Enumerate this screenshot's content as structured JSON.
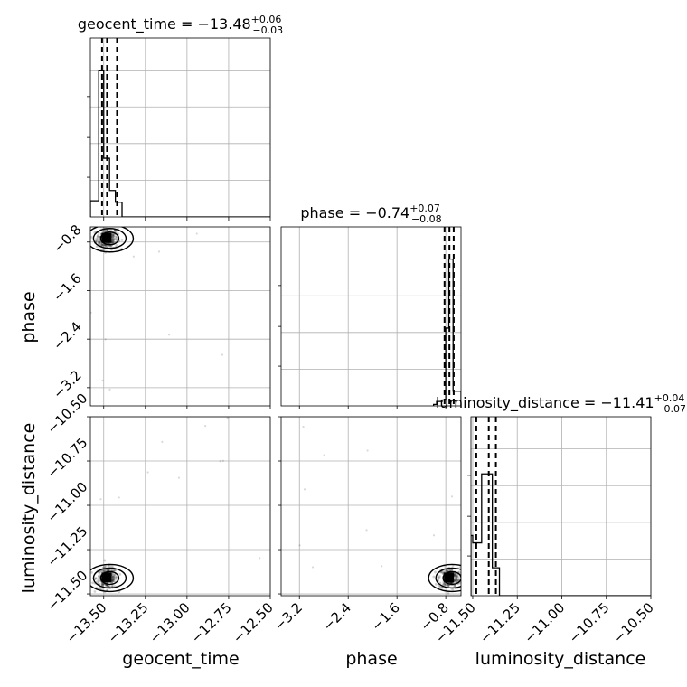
{
  "chart_data": {
    "type": "corner",
    "parameters": [
      "geocent_time",
      "phase",
      "luminosity_distance"
    ],
    "axis_labels": [
      "geocent_time",
      "phase",
      "luminosity_distance"
    ],
    "titles": [
      {
        "param": "geocent_time",
        "text": "geocent_time = −13.48",
        "plus": "+0.06",
        "minus": "−0.03"
      },
      {
        "param": "phase",
        "text": "phase = −0.74",
        "plus": "+0.07",
        "minus": "−0.08"
      },
      {
        "param": "luminosity_distance",
        "text": "luminosity_distance = −11.41",
        "plus": "+0.04",
        "minus": "−0.07"
      }
    ],
    "ranges": {
      "geocent_time": [
        -13.58,
        -12.5
      ],
      "phase": [
        -3.5,
        -0.55
      ],
      "luminosity_distance": [
        -11.51,
        -10.5
      ]
    },
    "ticks": {
      "geocent_time": {
        "values": [
          -13.5,
          -13.25,
          -13.0,
          -12.75,
          -12.5
        ],
        "labels": [
          "−13.50",
          "−13.25",
          "−13.00",
          "−12.75",
          "−12.50"
        ]
      },
      "phase": {
        "values": [
          -3.2,
          -2.4,
          -1.6,
          -0.8
        ],
        "labels": [
          "−3.2",
          "−2.4",
          "−1.6",
          "−0.8"
        ]
      },
      "luminosity_distance": {
        "values": [
          -11.5,
          -11.25,
          -11.0,
          -10.75,
          -10.5
        ],
        "labels": [
          "−11.50",
          "−11.25",
          "−11.00",
          "−10.75",
          "−10.50"
        ]
      }
    },
    "quantile_lines": {
      "geocent_time": [
        -13.51,
        -13.48,
        -13.42
      ],
      "phase": [
        -0.82,
        -0.74,
        -0.67
      ],
      "luminosity_distance": [
        -11.48,
        -11.41,
        -11.37
      ]
    },
    "histograms": {
      "geocent_time": {
        "edges": [
          -13.58,
          -13.53,
          -13.5,
          -13.465,
          -13.43,
          -13.39,
          -13.34
        ],
        "counts": [
          0.11,
          1.0,
          0.4,
          0.18,
          0.1,
          0
        ]
      },
      "phase": {
        "edges": [
          -1.0,
          -0.95,
          -0.86,
          -0.8,
          -0.75,
          -0.68,
          -0.6,
          -0.55
        ],
        "counts": [
          0.01,
          0.03,
          0.04,
          0.53,
          1.0,
          0.1,
          0.1
        ]
      },
      "luminosity_distance": {
        "edges": [
          -11.51,
          -11.5,
          -11.45,
          -11.39,
          -11.35,
          -11.31
        ],
        "counts": [
          0.41,
          0.36,
          0.83,
          0.19,
          0
        ]
      }
    },
    "grid": true
  }
}
